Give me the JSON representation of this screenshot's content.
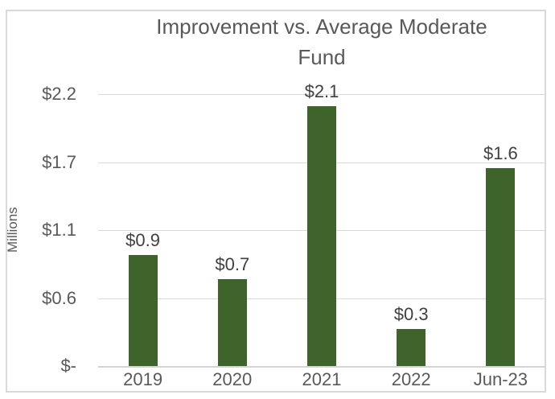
{
  "chart_frame": {
    "border_color": "#D9D9D9",
    "background": "#FFFFFF"
  },
  "chart_data": {
    "type": "bar",
    "title": "Improvement vs. Average Moderate Fund",
    "title_lines": [
      "Improvement vs. Average Moderate",
      "Fund"
    ],
    "xlabel": "",
    "ylabel": "Millions",
    "categories": [
      "2019",
      "2020",
      "2021",
      "2022",
      "Jun-23"
    ],
    "values": [
      0.9,
      0.7,
      2.1,
      0.3,
      1.6
    ],
    "data_labels": [
      "$0.9",
      "$0.7",
      "$2.1",
      "$0.3",
      "$1.6"
    ],
    "y_ticks_top_to_bottom": [
      "$2.2",
      "$1.7",
      "$1.1",
      "$0.6",
      "$-"
    ],
    "ylim": [
      0,
      2.2
    ],
    "grid": true,
    "legend_position": "none",
    "bar_color": "#3E642C",
    "title_color": "#595959",
    "axis_label_color": "#595959",
    "data_label_color": "#404040",
    "gridline_color": "#D9D9D9"
  }
}
